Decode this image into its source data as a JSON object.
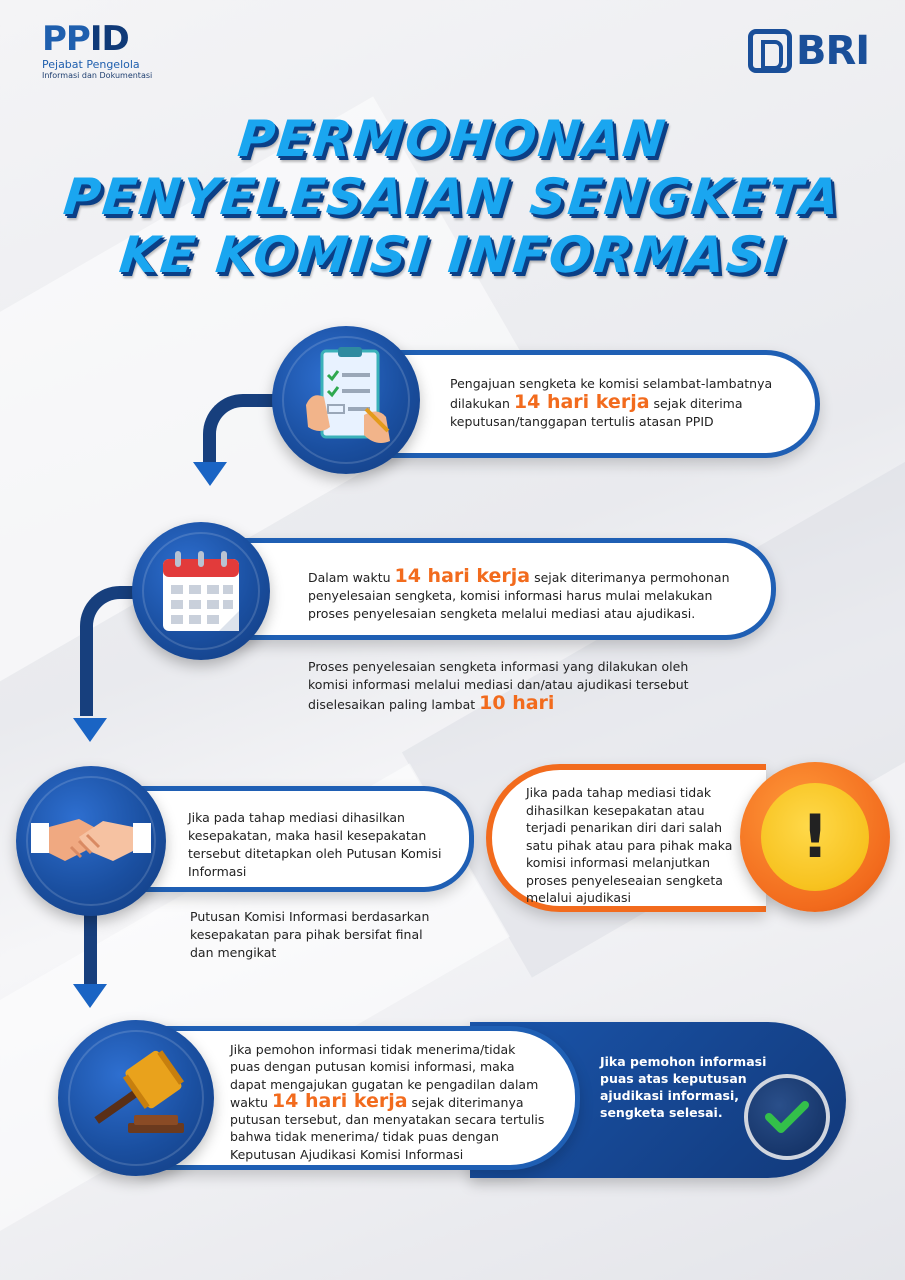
{
  "logos": {
    "ppid_word_a": "PP",
    "ppid_word_b": "ID",
    "ppid_line1": "Pejabat Pengelola",
    "ppid_line2": "Informasi dan Dokumentasi",
    "bri": "BRI"
  },
  "title": {
    "line1": "PERMOHONAN",
    "line2": "PENYELESAIAN SENGKETA",
    "line3": "KE KOMISI INFORMASI"
  },
  "step1": {
    "icon": "clipboard-icon",
    "l1": "Pengajuan sengketa ke komisi selambat-lambatnya",
    "l2a": "dilakukan ",
    "l2hl": "14 hari kerja",
    "l2b": " sejak diterima",
    "l3": "keputusan/tanggapan tertulis atasan PPID"
  },
  "step2": {
    "icon": "calendar-icon",
    "a": "Dalam waktu ",
    "hl": "14 hari kerja",
    "b": " sejak diterimanya permohonan penyelesaian sengketa, komisi informasi harus mulai melakukan proses penyelesaian sengketa melalui mediasi atau ajudikasi.",
    "note_a": "Proses penyelesaian sengketa informasi yang dilakukan oleh komisi informasi melalui mediasi dan/atau ajudikasi tersebut diselesaikan paling lambat ",
    "note_hl": "10 hari"
  },
  "step3": {
    "icon": "handshake-icon",
    "text": "Jika pada tahap mediasi dihasilkan kesepakatan, maka hasil kesepakatan tersebut ditetapkan oleh Putusan Komisi Informasi",
    "note": "Putusan Komisi Informasi berdasarkan kesepakatan para pihak bersifat final dan mengikat"
  },
  "step3b": {
    "icon": "warning-icon",
    "mark": "!",
    "text": "Jika pada tahap mediasi tidak dihasilkan kesepakatan atau terjadi penarikan diri dari salah satu pihak atau para pihak maka komisi informasi melanjutkan proses penyeleseaian sengketa melalui ajudikasi"
  },
  "step4": {
    "icon": "gavel-icon",
    "a": "Jika pemohon informasi tidak menerima/tidak puas dengan putusan komisi informasi, maka dapat mengajukan gugatan ke pengadilan dalam waktu ",
    "hl": "14 hari kerja",
    "b": " sejak diterimanya putusan tersebut, dan menyatakan secara tertulis bahwa tidak menerima/ tidak puas dengan Keputusan Ajudikasi Komisi Informasi"
  },
  "final": {
    "icon": "checkmark-icon",
    "text": "Jika pemohon informasi puas atas keputusan ajudikasi informasi, sengketa selesai."
  },
  "colors": {
    "primary_blue": "#1f5fb4",
    "dark_blue": "#173f7d",
    "accent_orange": "#f26b1d",
    "title_cyan": "#1aa6f0"
  }
}
